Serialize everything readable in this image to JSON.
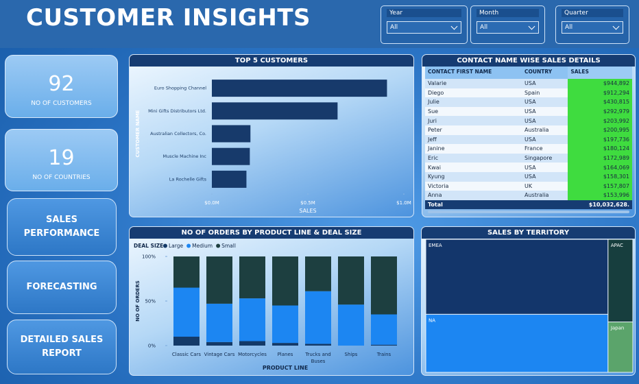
{
  "header": {
    "title": "CUSTOMER INSIGHTS"
  },
  "filters": [
    {
      "label": "Year",
      "value": "All"
    },
    {
      "label": "Month",
      "value": "All"
    },
    {
      "label": "Quarter",
      "value": "All"
    }
  ],
  "kpis": [
    {
      "value": 92,
      "label": "NO OF CUSTOMERS"
    },
    {
      "value": 19,
      "label": "NO OF COUNTRIES"
    }
  ],
  "nav": [
    "SALES PERFORMANCE",
    "FORECASTING",
    "DETAILED SALES REPORT"
  ],
  "table": {
    "title": "CONTACT NAME WISE SALES DETAILS",
    "columns": [
      "CONTACT FIRST NAME",
      "COUNTRY",
      "SALES"
    ],
    "rows": [
      [
        "Valarie",
        "USA",
        "$944,892"
      ],
      [
        "Diego",
        "Spain",
        "$912,294"
      ],
      [
        "Julie",
        "USA",
        "$430,815"
      ],
      [
        "Sue",
        "USA",
        "$292,979"
      ],
      [
        "Juri",
        "USA",
        "$203,992"
      ],
      [
        "Peter",
        "Australia",
        "$200,995"
      ],
      [
        "Jeff",
        "USA",
        "$197,736"
      ],
      [
        "Janine",
        "France",
        "$180,124"
      ],
      [
        "Eric",
        "Singapore",
        "$172,989"
      ],
      [
        "Kwai",
        "USA",
        "$164,069"
      ],
      [
        "Kyung",
        "USA",
        "$158,301"
      ],
      [
        "Victoria",
        "UK",
        "$157,807"
      ],
      [
        "Anna",
        "Australia",
        "$153,996"
      ]
    ],
    "total": [
      "Total",
      "$10,032,628."
    ]
  },
  "chart_data": [
    {
      "type": "bar",
      "horizontal": true,
      "title": "TOP 5 CUSTOMERS",
      "x_label": "SALES",
      "y_label": "CUSTOMER NAME",
      "categories": [
        "Euro Shopping Channel",
        "Mini Gifts Distributors Ltd.",
        "Australian Collectors, Co.",
        "Muscle Machine Inc",
        "La Rochelle Gifts"
      ],
      "values": [
        912294,
        654858,
        200995,
        197736,
        180124
      ],
      "color": "#173a6b",
      "xlim": [
        0,
        1000000
      ],
      "xticks": [
        {
          "value": 0,
          "label": "$0.0M"
        },
        {
          "value": 500000,
          "label": "$0.5M"
        },
        {
          "value": 1000000,
          "label": "$1.0M"
        }
      ]
    },
    {
      "type": "stacked_bar",
      "title": "NO OF ORDERS BY PRODUCT LINE & DEAL SIZE",
      "legend_title": "DEAL SIZE",
      "x_label": "PRODUCT LINE",
      "y_label": "NO OF ORDERS",
      "categories": [
        "Classic Cars",
        "Vintage Cars",
        "Motorcycles",
        "Planes",
        "Trucks and Buses",
        "Ships",
        "Trains"
      ],
      "series": [
        {
          "name": "Large",
          "color": "#143a68",
          "values": [
            10,
            4,
            5,
            3,
            2,
            0,
            1
          ]
        },
        {
          "name": "Medium",
          "color": "#1c86f2",
          "values": [
            55,
            43,
            48,
            42,
            59,
            46,
            34
          ]
        },
        {
          "name": "Small",
          "color": "#1d3f40",
          "values": [
            35,
            53,
            47,
            55,
            39,
            54,
            65
          ]
        }
      ],
      "ylim": [
        0,
        100
      ],
      "yticks": [
        {
          "value": 0,
          "label": "0%"
        },
        {
          "value": 50,
          "label": "50%"
        },
        {
          "value": 100,
          "label": "100%"
        }
      ]
    },
    {
      "type": "treemap",
      "title": "SALES BY TERRITORY",
      "categories": [
        "EMEA",
        "NA",
        "APAC",
        "Japan"
      ],
      "values": [
        4979272,
        3852061,
        746121,
        455174
      ],
      "colors": [
        "#13366b",
        "#1c86f2",
        "#173e3e",
        "#5ba46b"
      ]
    }
  ]
}
